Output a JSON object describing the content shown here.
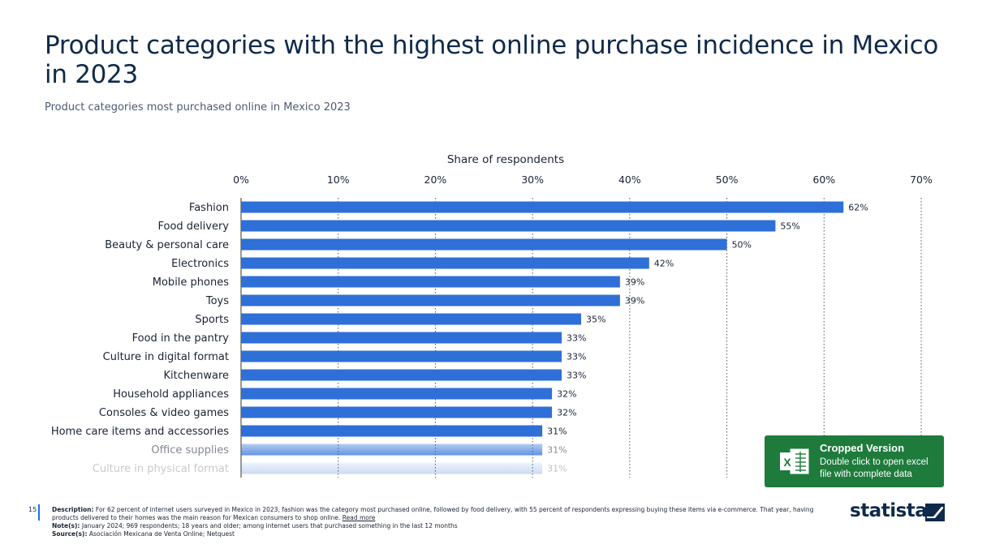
{
  "header": {
    "title": "Product categories with the highest online purchase incidence in Mexico in 2023",
    "subtitle": "Product categories most purchased online in Mexico 2023"
  },
  "chart_data": {
    "type": "bar",
    "orientation": "horizontal",
    "xlabel": "Share of respondents",
    "xlim": [
      0,
      70
    ],
    "xticks": [
      "0%",
      "10%",
      "20%",
      "30%",
      "40%",
      "50%",
      "60%",
      "70%"
    ],
    "categories": [
      "Fashion",
      "Food delivery",
      "Beauty & personal care",
      "Electronics",
      "Mobile phones",
      "Toys",
      "Sports",
      "Food in the pantry",
      "Culture in digital format",
      "Kitchenware",
      "Household appliances",
      "Consoles & video games",
      "Home care items and accessories",
      "Office supplies",
      "Culture in physical format"
    ],
    "values": [
      62,
      55,
      50,
      42,
      39,
      39,
      35,
      33,
      33,
      33,
      32,
      32,
      31,
      31,
      31
    ],
    "value_labels": [
      "62%",
      "55%",
      "50%",
      "42%",
      "39%",
      "39%",
      "35%",
      "33%",
      "33%",
      "33%",
      "32%",
      "32%",
      "31%",
      "31%",
      "31%"
    ],
    "bar_color": "#2e6fd8",
    "grid": "vertical dotted",
    "faded_rows": [
      "Office supplies",
      "Culture in physical format"
    ]
  },
  "badge": {
    "title": "Cropped Version",
    "description": "Double click to open excel file with complete data",
    "icon": "excel-icon",
    "color": "#1e7b3c"
  },
  "footer": {
    "page_number": "15",
    "description_label": "Description:",
    "description": "For 62 percent of internet users surveyed in Mexico in 2023, fashion was the category most purchased online, followed by food delivery, with 55 percent of respondents expressing buying these items via e-commerce. That year, having products delivered to their homes was the main reason for Mexican consumers to shop online.",
    "read_more": "Read more",
    "note_label": "Note(s):",
    "note": "January 2024; 969 respondents; 18 years and older; among internet users that purchased something in the last 12 months",
    "source_label": "Source(s):",
    "source": "Asociación Mexicana de Venta Online; Netquest"
  },
  "logo": {
    "text": "statista",
    "icon": "statista-logo-icon"
  }
}
